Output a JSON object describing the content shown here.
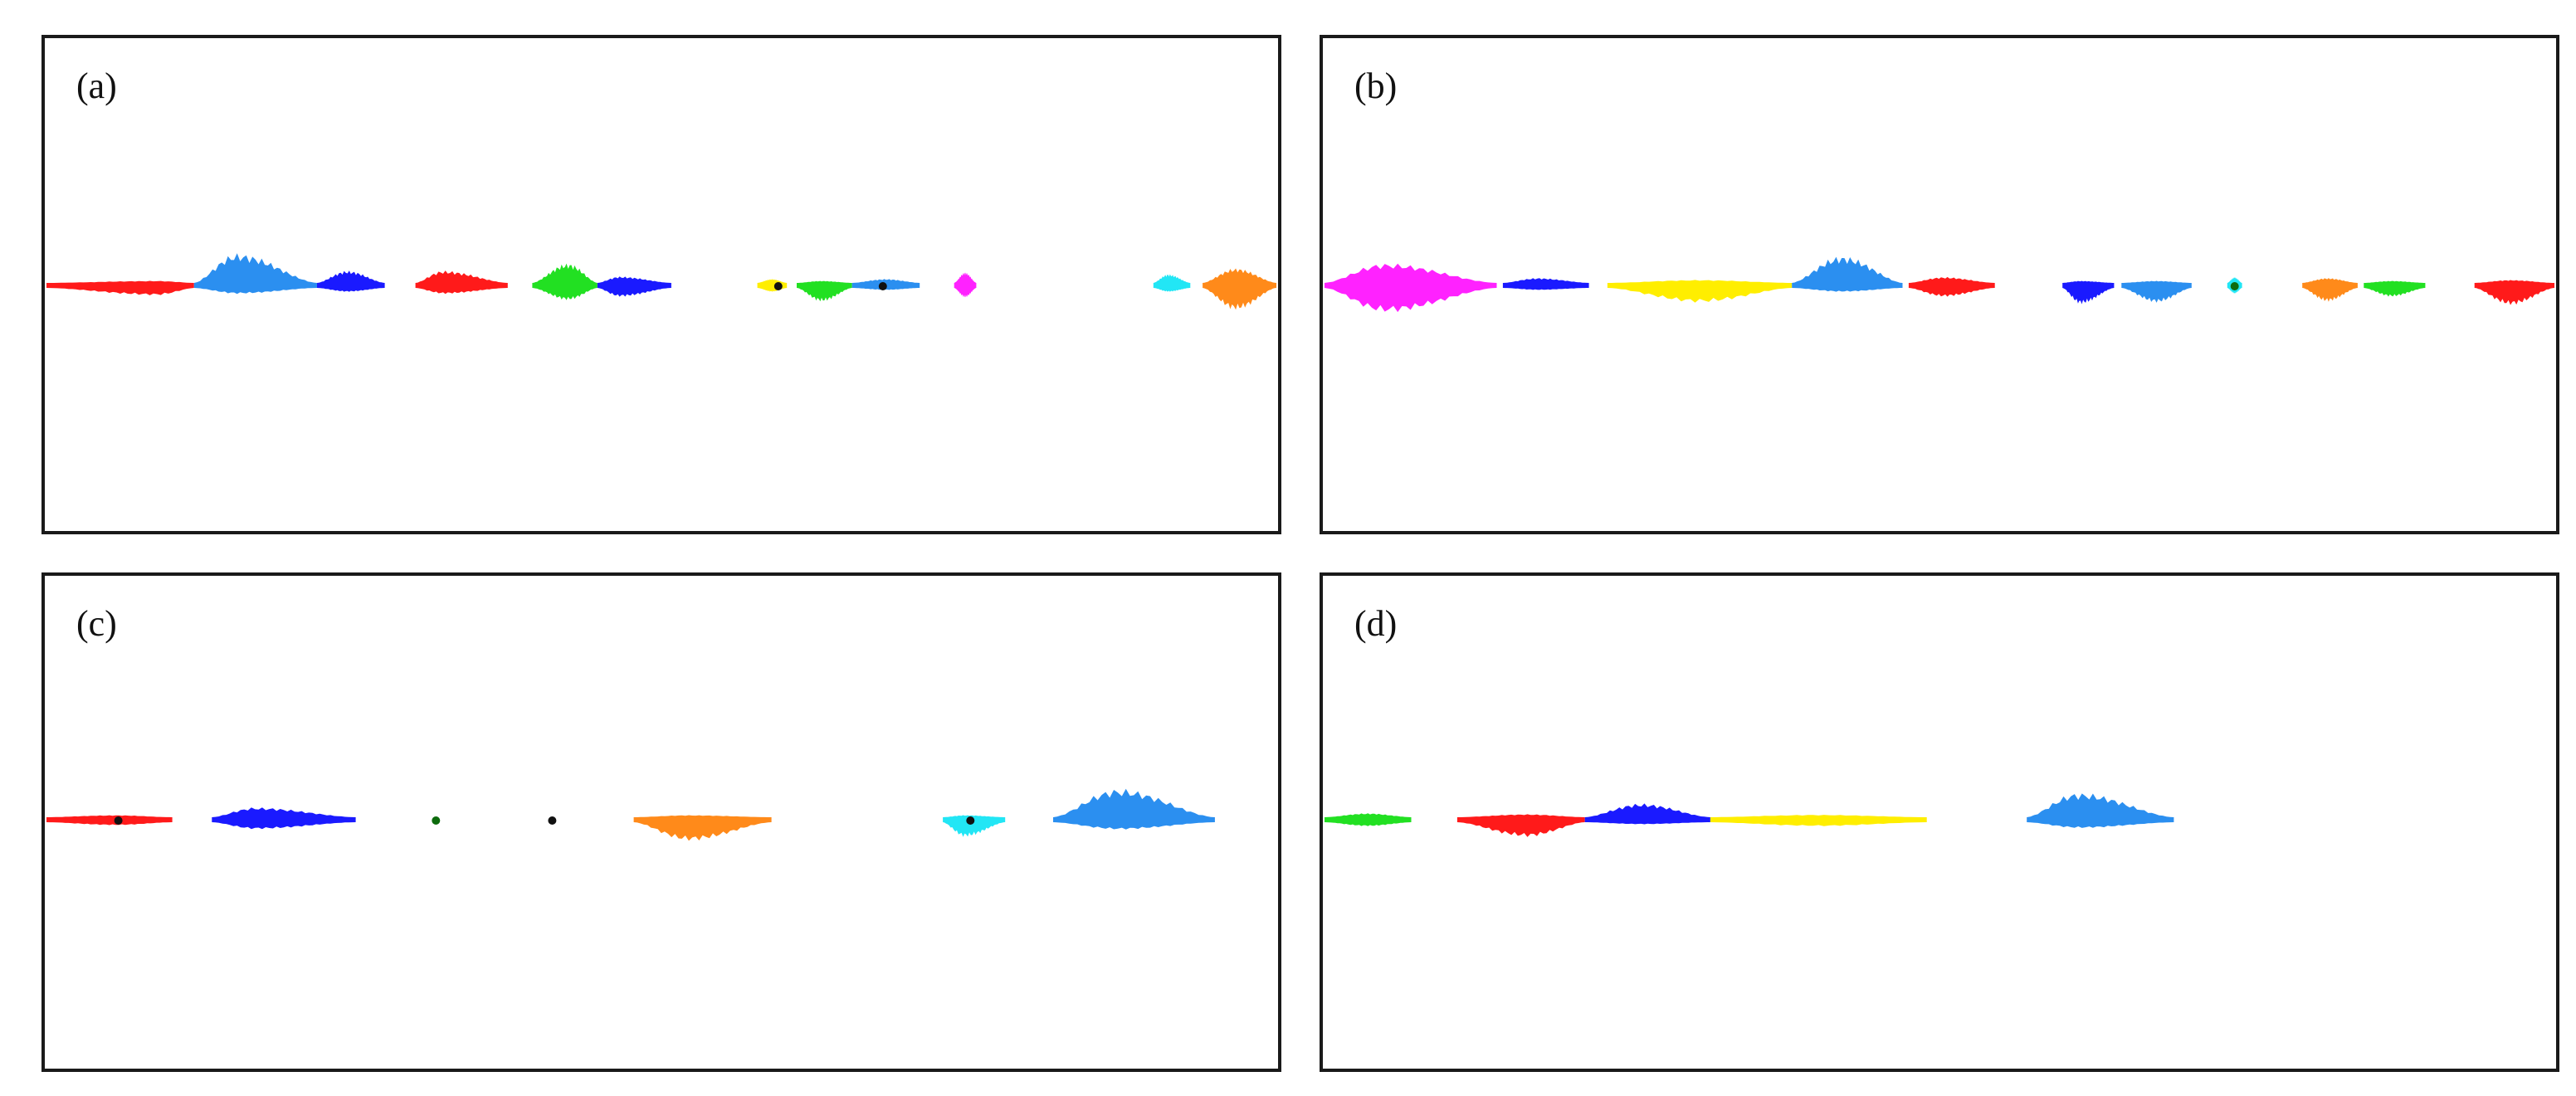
{
  "palette": {
    "red": "#ff1a1a",
    "blue": "#1a1aff",
    "sky": "#2b8ff0",
    "green": "#22e022",
    "yellow": "#ffee00",
    "magenta": "#ff22ff",
    "cyan": "#22e6f5",
    "orange": "#ff8a1a",
    "dark-green": "#0d6b0d",
    "black": "#111111"
  },
  "panels": [
    {
      "id": "a",
      "label": "(a)",
      "segments": [
        {
          "color": "red",
          "x0": 0.0,
          "x1": 0.12,
          "up": 0.002,
          "down": 0.015,
          "peak": 0.75
        },
        {
          "color": "sky",
          "x0": 0.12,
          "x1": 0.22,
          "up": 0.06,
          "down": 0.012,
          "peak": 0.35
        },
        {
          "color": "blue",
          "x0": 0.22,
          "x1": 0.275,
          "up": 0.025,
          "down": 0.008,
          "peak": 0.45
        },
        {
          "color": "red",
          "x0": 0.3,
          "x1": 0.375,
          "up": 0.025,
          "down": 0.012,
          "peak": 0.3
        },
        {
          "color": "green",
          "x0": 0.395,
          "x1": 0.448,
          "up": 0.04,
          "down": 0.025,
          "peak": 0.55
        },
        {
          "color": "blue",
          "x0": 0.448,
          "x1": 0.508,
          "up": 0.013,
          "down": 0.018,
          "peak": 0.3
        },
        {
          "color": "yellow",
          "x0": 0.578,
          "x1": 0.602,
          "up": 0.008,
          "down": 0.008,
          "peak": 0.5
        },
        {
          "color": "green",
          "x0": 0.61,
          "x1": 0.655,
          "up": 0.002,
          "down": 0.028,
          "peak": 0.45
        },
        {
          "color": "sky",
          "x0": 0.655,
          "x1": 0.71,
          "up": 0.008,
          "down": 0.004,
          "peak": 0.5
        },
        {
          "color": "magenta",
          "x0": 0.738,
          "x1": 0.756,
          "up": 0.022,
          "down": 0.02,
          "peak": 0.5
        },
        {
          "color": "cyan",
          "x0": 0.9,
          "x1": 0.93,
          "up": 0.018,
          "down": 0.008,
          "peak": 0.4
        },
        {
          "color": "orange",
          "x0": 0.94,
          "x1": 1.0,
          "up": 0.03,
          "down": 0.045,
          "peak": 0.45
        }
      ],
      "dots": [
        {
          "color": "black",
          "x": 0.595
        },
        {
          "color": "black",
          "x": 0.68
        }
      ]
    },
    {
      "id": "b",
      "label": "(b)",
      "segments": [
        {
          "color": "magenta",
          "x0": 0.0,
          "x1": 0.14,
          "up": 0.04,
          "down": 0.05,
          "peak": 0.35
        },
        {
          "color": "blue",
          "x0": 0.145,
          "x1": 0.215,
          "up": 0.01,
          "down": 0.004,
          "peak": 0.4
        },
        {
          "color": "yellow",
          "x0": 0.23,
          "x1": 0.38,
          "up": 0.006,
          "down": 0.03,
          "peak": 0.5
        },
        {
          "color": "sky",
          "x0": 0.38,
          "x1": 0.47,
          "up": 0.055,
          "down": 0.008,
          "peak": 0.45
        },
        {
          "color": "red",
          "x0": 0.475,
          "x1": 0.545,
          "up": 0.012,
          "down": 0.018,
          "peak": 0.4
        },
        {
          "color": "blue",
          "x0": 0.6,
          "x1": 0.642,
          "up": 0.002,
          "down": 0.033,
          "peak": 0.35
        },
        {
          "color": "sky",
          "x0": 0.648,
          "x1": 0.705,
          "up": 0.004,
          "down": 0.03,
          "peak": 0.5
        },
        {
          "color": "cyan",
          "x0": 0.734,
          "x1": 0.746,
          "up": 0.012,
          "down": 0.012,
          "peak": 0.5
        },
        {
          "color": "orange",
          "x0": 0.795,
          "x1": 0.84,
          "up": 0.01,
          "down": 0.028,
          "peak": 0.45
        },
        {
          "color": "green",
          "x0": 0.845,
          "x1": 0.895,
          "up": 0.004,
          "down": 0.018,
          "peak": 0.45
        },
        {
          "color": "red",
          "x0": 0.935,
          "x1": 1.0,
          "up": 0.006,
          "down": 0.035,
          "peak": 0.45
        }
      ],
      "dots": [
        {
          "color": "dark-green",
          "x": 0.74
        }
      ]
    },
    {
      "id": "c",
      "label": "(c)",
      "segments": [
        {
          "color": "red",
          "x0": 0.0,
          "x1": 0.105,
          "up": 0.004,
          "down": 0.006,
          "peak": 0.55
        },
        {
          "color": "blue",
          "x0": 0.138,
          "x1": 0.258,
          "up": 0.02,
          "down": 0.014,
          "peak": 0.3
        },
        {
          "color": "orange",
          "x0": 0.49,
          "x1": 0.605,
          "up": 0.004,
          "down": 0.038,
          "peak": 0.4
        },
        {
          "color": "cyan",
          "x0": 0.748,
          "x1": 0.8,
          "up": 0.004,
          "down": 0.03,
          "peak": 0.35
        },
        {
          "color": "sky",
          "x0": 0.84,
          "x1": 0.975,
          "up": 0.058,
          "down": 0.015,
          "peak": 0.4
        }
      ],
      "dots": [
        {
          "color": "black",
          "x": 0.06
        },
        {
          "color": "dark-green",
          "x": 0.325
        },
        {
          "color": "black",
          "x": 0.422
        },
        {
          "color": "black",
          "x": 0.771
        }
      ]
    },
    {
      "id": "d",
      "label": "(d)",
      "segments": [
        {
          "color": "green",
          "x0": 0.0,
          "x1": 0.085,
          "up": 0.008,
          "down": 0.008,
          "peak": 0.5
        },
        {
          "color": "red",
          "x0": 0.13,
          "x1": 0.255,
          "up": 0.006,
          "down": 0.03,
          "peak": 0.55
        },
        {
          "color": "blue",
          "x0": 0.255,
          "x1": 0.378,
          "up": 0.028,
          "down": 0.004,
          "peak": 0.45
        },
        {
          "color": "yellow",
          "x0": 0.378,
          "x1": 0.59,
          "up": 0.005,
          "down": 0.008,
          "peak": 0.5
        },
        {
          "color": "sky",
          "x0": 0.688,
          "x1": 0.832,
          "up": 0.05,
          "down": 0.012,
          "peak": 0.35
        }
      ],
      "dots": []
    }
  ]
}
